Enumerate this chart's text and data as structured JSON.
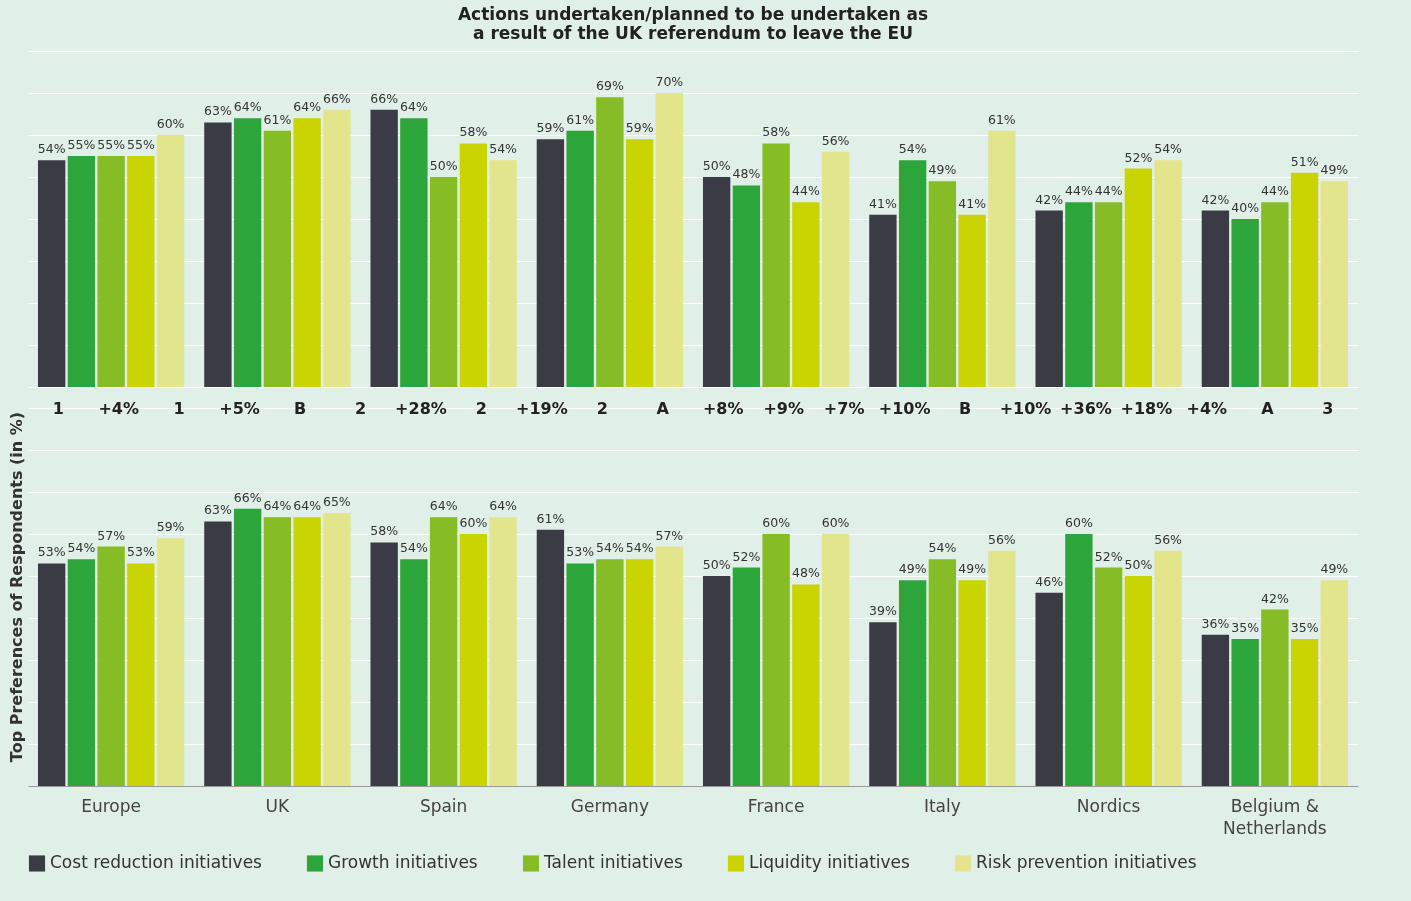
{
  "chart_data": [
    {
      "type": "bar",
      "title": "Actions undertaken/planned to be undertaken as a result of the UK referendum to leave the EU",
      "categories": [
        null,
        null,
        null,
        null,
        null,
        null,
        null,
        null
      ],
      "ylim": [
        0,
        80
      ],
      "grid": true,
      "tick_labels": false,
      "series": [
        {
          "color": "#3a3b45",
          "values": [
            54,
            63,
            66,
            59,
            50,
            41,
            42,
            42
          ],
          "value_labels": [
            "54%",
            "63%",
            "66%",
            "59%",
            "50%",
            "41%",
            "42%",
            "42%"
          ]
        },
        {
          "color": "#2ca53a",
          "values": [
            55,
            64,
            64,
            61,
            48,
            54,
            44,
            40
          ],
          "value_labels": [
            "55%",
            "64%",
            "64%",
            "61%",
            "48%",
            "54%",
            "44%",
            "40%"
          ]
        },
        {
          "color": "#86bc25",
          "values": [
            55,
            61,
            50,
            69,
            58,
            49,
            44,
            44
          ],
          "value_labels": [
            "55%",
            "61%",
            "50%",
            "69%",
            "58%",
            "49%",
            "44%",
            "44%"
          ]
        },
        {
          "color": "#c9d400",
          "values": [
            55,
            64,
            58,
            59,
            44,
            41,
            52,
            51
          ],
          "value_labels": [
            "55%",
            "64%",
            "58%",
            "59%",
            "44%",
            "41%",
            "52%",
            "51%"
          ]
        },
        {
          "color": "#e3e58d",
          "values": [
            60,
            66,
            54,
            70,
            56,
            61,
            54,
            49
          ],
          "value_labels": [
            "60%",
            "66%",
            "54%",
            "70%",
            "56%",
            "61%",
            "54%",
            "49%"
          ]
        }
      ]
    },
    {
      "type": "bar",
      "categories": [
        "Europe",
        "UK",
        "Spain",
        "Germany",
        "France",
        "Italy",
        "Nordics",
        "Belgium & Netherlands"
      ],
      "ylabel": "Top Preferences of Respondents (in %)",
      "ylim": [
        0,
        95
      ],
      "grid": true,
      "tick_labels": "x",
      "legend": "bottom",
      "series": [
        {
          "name": "Cost reduction initiatives",
          "color": "#3a3b45",
          "values": [
            53,
            63,
            58,
            61,
            50,
            39,
            46,
            36
          ],
          "value_labels": [
            "53%",
            "63%",
            "58%",
            "61%",
            "50%",
            "39%",
            "46%",
            "36%"
          ]
        },
        {
          "name": "Growth initiatives",
          "color": "#2ca53a",
          "values": [
            54,
            66,
            54,
            53,
            52,
            49,
            60,
            35
          ],
          "value_labels": [
            "54%",
            "66%",
            "54%",
            "53%",
            "52%",
            "49%",
            "60%",
            "35%"
          ]
        },
        {
          "name": "Talent initiatives",
          "color": "#86bc25",
          "values": [
            57,
            64,
            64,
            54,
            60,
            54,
            52,
            42
          ],
          "value_labels": [
            "57%",
            "64%",
            "64%",
            "54%",
            "60%",
            "54%",
            "52%",
            "42%"
          ]
        },
        {
          "name": "Liquidity initiatives",
          "color": "#c9d400",
          "values": [
            53,
            64,
            60,
            54,
            48,
            49,
            50,
            35
          ],
          "value_labels": [
            "53%",
            "64%",
            "60%",
            "54%",
            "48%",
            "49%",
            "50%",
            "35%"
          ]
        },
        {
          "name": "Risk prevention initiatives",
          "color": "#e3e58d",
          "values": [
            59,
            65,
            64,
            57,
            60,
            56,
            56,
            49
          ],
          "value_labels": [
            "59%",
            "65%",
            "64%",
            "57%",
            "60%",
            "56%",
            "56%",
            "49%"
          ]
        }
      ],
      "annotations": [
        "1",
        "+4%",
        "1",
        "+5%",
        "B",
        "2",
        "+28%",
        "2",
        "+19%",
        "2",
        "A",
        "+8%",
        "+9%",
        "+7%",
        "+10%",
        "B",
        "+10%",
        "+36%",
        "+18%",
        "+4%",
        "A",
        "3"
      ]
    }
  ]
}
